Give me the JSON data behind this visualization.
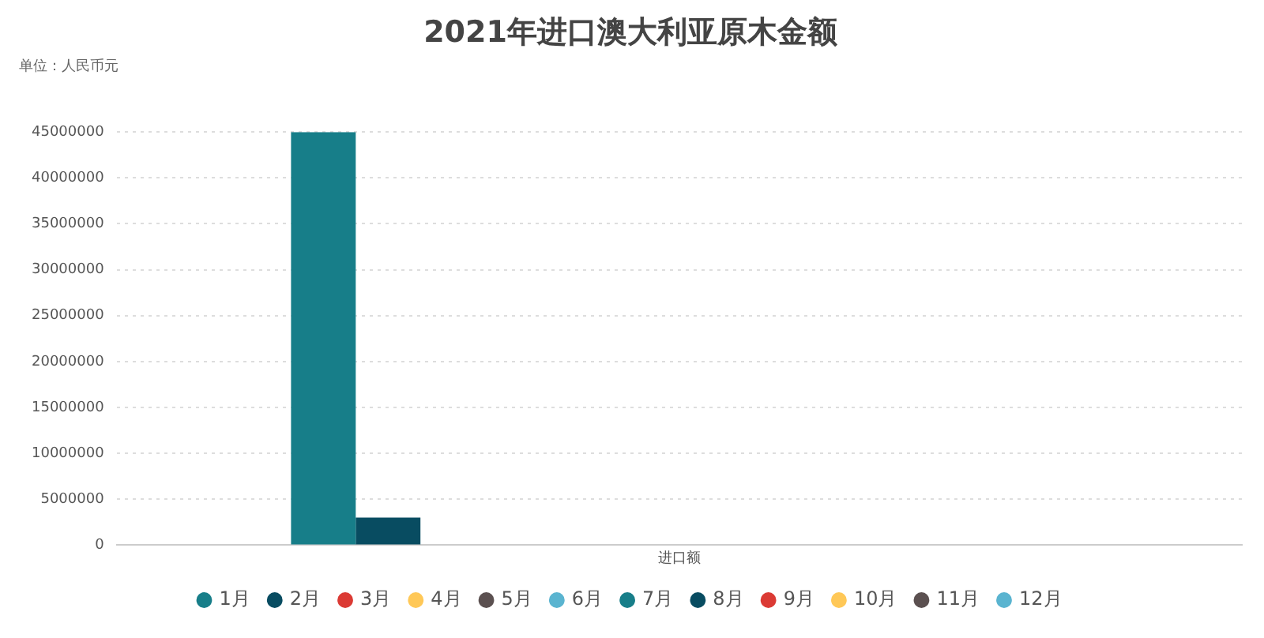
{
  "chart_data": {
    "type": "bar",
    "title": "2021年进口澳大利亚原木金额",
    "subtitle": "单位：人民币元",
    "categories": [
      "进口额"
    ],
    "series": [
      {
        "name": "1月",
        "color": "#177e89",
        "values": [
          45000000
        ]
      },
      {
        "name": "2月",
        "color": "#084c61",
        "values": [
          3000000
        ]
      },
      {
        "name": "3月",
        "color": "#db3a34",
        "values": [
          null
        ]
      },
      {
        "name": "4月",
        "color": "#ffc857",
        "values": [
          null
        ]
      },
      {
        "name": "5月",
        "color": "#5b5050",
        "values": [
          null
        ]
      },
      {
        "name": "6月",
        "color": "#5ab4d0",
        "values": [
          null
        ]
      },
      {
        "name": "7月",
        "color": "#177e89",
        "values": [
          null
        ]
      },
      {
        "name": "8月",
        "color": "#084c61",
        "values": [
          null
        ]
      },
      {
        "name": "9月",
        "color": "#db3a34",
        "values": [
          null
        ]
      },
      {
        "name": "10月",
        "color": "#ffc857",
        "values": [
          null
        ]
      },
      {
        "name": "11月",
        "color": "#5b5050",
        "values": [
          null
        ]
      },
      {
        "name": "12月",
        "color": "#5ab4d0",
        "values": [
          null
        ]
      }
    ],
    "ylim": [
      0,
      45000000
    ],
    "yticks": [
      0,
      5000000,
      10000000,
      15000000,
      20000000,
      25000000,
      30000000,
      35000000,
      40000000,
      45000000
    ],
    "grid": "y",
    "legend": "bottom"
  }
}
